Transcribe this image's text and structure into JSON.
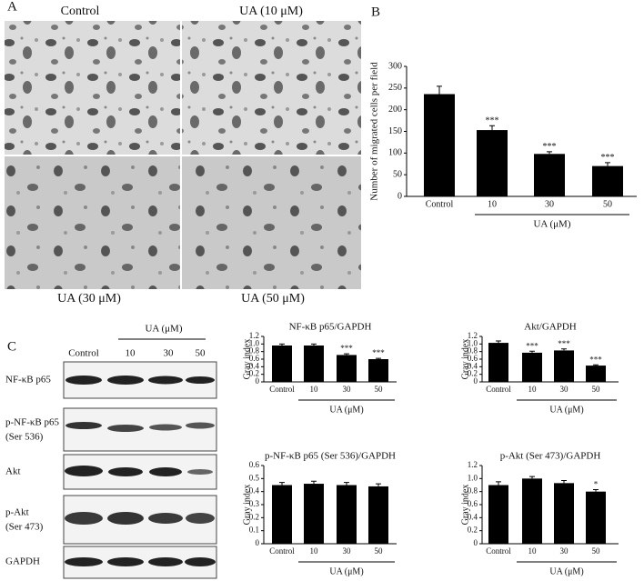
{
  "figure": {
    "panels": [
      "A",
      "B",
      "C"
    ],
    "micrographs": [
      "Control",
      "UA (10 μM)",
      "UA (30 μM)",
      "UA (50 μM)"
    ],
    "blot": {
      "group_label": "UA (μM)",
      "lanes": [
        "Control",
        "10",
        "30",
        "50"
      ],
      "rows": [
        [
          "NF-κB p65"
        ],
        [
          "p-NF-κB p65",
          "(Ser 536)"
        ],
        [
          "Akt"
        ],
        [
          "p-Akt",
          "(Ser 473)"
        ],
        [
          "GAPDH"
        ]
      ]
    }
  },
  "chart_data": [
    {
      "type": "bar",
      "y_label": "Number of migrated cells per field",
      "categories": [
        "Control",
        "10",
        "30",
        "50"
      ],
      "x_group_label": "UA (μM)",
      "values": [
        236,
        153,
        98,
        70
      ],
      "errors": [
        18,
        10,
        5,
        8
      ],
      "significance": [
        null,
        "***",
        "***",
        "***"
      ],
      "color": "#000000",
      "ylim": [
        0,
        300
      ],
      "yticks": [
        0,
        50,
        100,
        150,
        200,
        250,
        300
      ]
    },
    {
      "type": "bar",
      "title": "NF-κB p65/GAPDH",
      "y_label": "Gray index",
      "categories": [
        "Control",
        "10",
        "30",
        "50"
      ],
      "x_group_label": "UA (μM)",
      "values": [
        0.96,
        0.96,
        0.71,
        0.6
      ],
      "errors": [
        0.04,
        0.04,
        0.03,
        0.02
      ],
      "significance": [
        null,
        null,
        "***",
        "***"
      ],
      "color": "#000000",
      "ylim": [
        0,
        1.2
      ],
      "yticks": [
        0,
        0.2,
        0.4,
        0.6,
        0.8,
        {
          "value": 1,
          "label": "1.0"
        },
        1.2
      ]
    },
    {
      "type": "bar",
      "title": "Akt/GAPDH",
      "y_label": "Gray index",
      "categories": [
        "Control",
        "10",
        "30",
        "50"
      ],
      "x_group_label": "UA (μM)",
      "values": [
        1.03,
        0.77,
        0.83,
        0.43
      ],
      "errors": [
        0.05,
        0.04,
        0.04,
        0.02
      ],
      "significance": [
        null,
        "***",
        "***",
        "***"
      ],
      "color": "#000000",
      "ylim": [
        0,
        1.2
      ],
      "yticks": [
        0,
        0.2,
        0.4,
        0.6,
        0.8,
        {
          "value": 1,
          "label": "1.0"
        },
        1.2
      ]
    },
    {
      "type": "bar",
      "title": "p-NF-κB p65 (Ser 536)/GAPDH",
      "y_label": "Gray index",
      "categories": [
        "Control",
        "10",
        "30",
        "50"
      ],
      "x_group_label": "UA (μM)",
      "values": [
        0.45,
        0.46,
        0.45,
        0.44
      ],
      "errors": [
        0.02,
        0.02,
        0.02,
        0.02
      ],
      "color": "#000000",
      "ylim": [
        0,
        0.6
      ],
      "yticks": [
        0,
        0.1,
        0.2,
        0.3,
        0.4,
        0.5,
        0.6
      ]
    },
    {
      "type": "bar",
      "title": "p-Akt (Ser 473)/GAPDH",
      "y_label": "Gray index",
      "categories": [
        "Control",
        "10",
        "30",
        "50"
      ],
      "x_group_label": "UA (μM)",
      "values": [
        0.9,
        1.0,
        0.93,
        0.8
      ],
      "errors": [
        0.05,
        0.03,
        0.04,
        0.03
      ],
      "significance": [
        null,
        null,
        null,
        "*"
      ],
      "color": "#000000",
      "ylim": [
        0,
        1.2
      ],
      "yticks": [
        0,
        0.2,
        0.4,
        0.6,
        0.8,
        {
          "value": 1,
          "label": "1.0"
        },
        1.2
      ]
    }
  ]
}
